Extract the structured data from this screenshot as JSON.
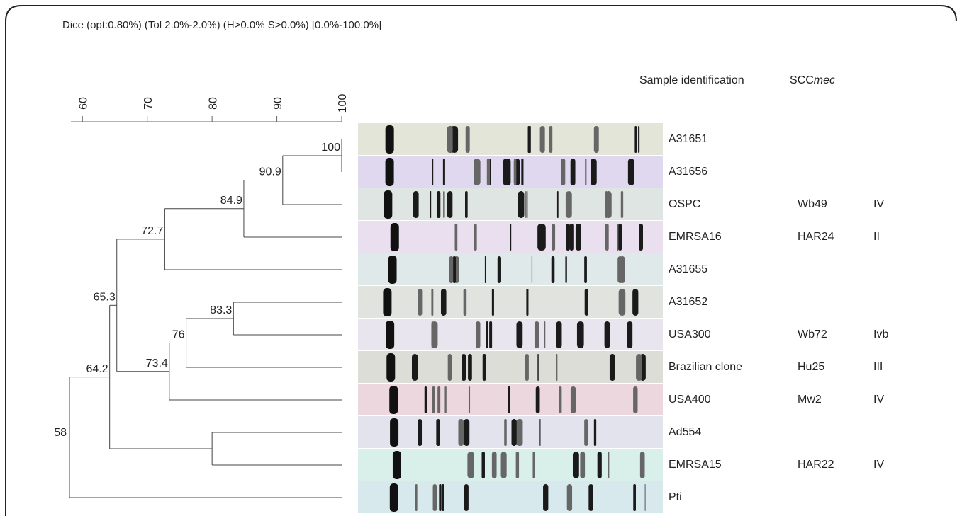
{
  "chart_data": {
    "type": "dendrogram",
    "title": "Dice (opt:0.80%) (Tol 2.0%-2.0%) (H>0.0% S>0.0%) [0.0%-100.0%]",
    "sample_header": "Sample identification",
    "scc_header_prefix": "SCC",
    "scc_header_italic": "mec",
    "xlim": [
      58,
      100
    ],
    "xticks": [
      60,
      70,
      80,
      90,
      100
    ],
    "tree": {
      "value": 58,
      "children": [
        {
          "value": 64.2,
          "children": [
            {
              "value": 65.3,
              "children": [
                {
                  "value": 72.7,
                  "children": [
                    {
                      "value": 84.9,
                      "children": [
                        {
                          "value": 90.9,
                          "children": [
                            {
                              "value": 100,
                              "children": [
                                {
                                  "name": "A31651"
                                },
                                {
                                  "name": "A31656"
                                }
                              ]
                            },
                            {
                              "name": "OSPC",
                              "strain": "Wb49",
                              "scc": "IV"
                            }
                          ]
                        },
                        {
                          "name": "EMRSA16",
                          "strain": "HAR24",
                          "scc": "II"
                        }
                      ]
                    },
                    {
                      "name": "A31655"
                    }
                  ]
                },
                {
                  "value": 73.4,
                  "children": [
                    {
                      "value": 76,
                      "children": [
                        {
                          "value": 83.3,
                          "children": [
                            {
                              "name": "A31652"
                            },
                            {
                              "name": "USA300",
                              "strain": "Wb72",
                              "scc": "Ivb"
                            }
                          ]
                        },
                        {
                          "name": "Brazilian clone",
                          "strain": "Hu25",
                          "scc": "III"
                        }
                      ]
                    },
                    {
                      "name": "USA400",
                      "strain": "Mw2",
                      "scc": "IV"
                    }
                  ]
                }
              ]
            },
            {
              "value": 80,
              "show_label": false,
              "children": [
                {
                  "name": "Ad554"
                },
                {
                  "name": "EMRSA15",
                  "strain": "HAR22",
                  "scc": "IV"
                }
              ]
            }
          ]
        },
        {
          "name": "Pti"
        }
      ]
    }
  }
}
